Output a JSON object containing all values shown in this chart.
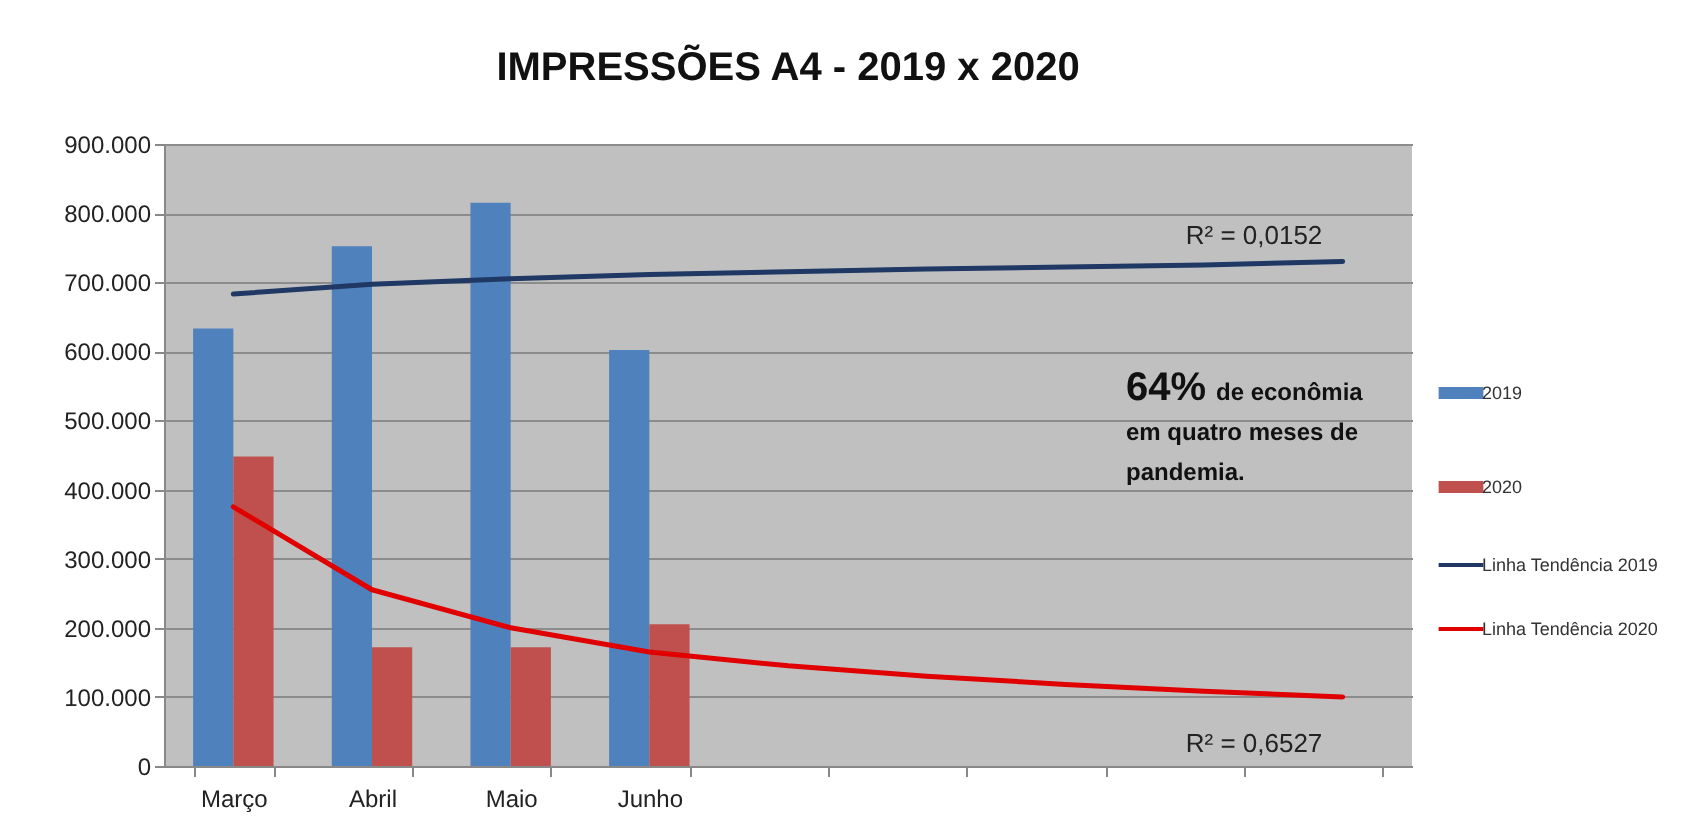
{
  "chart_data": {
    "type": "bar",
    "title": "IMPRESSÕES A4 - 2019 x 2020",
    "categories": [
      "Março",
      "Abril",
      "Maio",
      "Junho",
      null,
      null,
      null,
      null,
      null
    ],
    "series": [
      {
        "name": "2019",
        "color": "#4f81bd",
        "values": [
          633000,
          752000,
          815000,
          602000,
          null,
          null,
          null,
          null,
          null
        ]
      },
      {
        "name": "2020",
        "color": "#c0504d",
        "values": [
          448000,
          172000,
          172000,
          205000,
          null,
          null,
          null,
          null,
          null
        ]
      },
      {
        "name": "Linha Tendência 2019",
        "type": "line",
        "color": "#1f3864",
        "values": [
          683000,
          697000,
          705000,
          711000,
          715000,
          719000,
          722000,
          725000,
          730000
        ]
      },
      {
        "name": "Linha Tendência 2020",
        "type": "line",
        "color": "#e00000",
        "values": [
          375000,
          255000,
          200000,
          165000,
          145000,
          130000,
          118000,
          108000,
          100000
        ]
      }
    ],
    "ylim": [
      0,
      900000
    ],
    "yticks": [
      {
        "value": 0,
        "label": "0"
      },
      {
        "value": 100000,
        "label": "100.000"
      },
      {
        "value": 200000,
        "label": "200.000"
      },
      {
        "value": 300000,
        "label": "300.000"
      },
      {
        "value": 400000,
        "label": "400.000"
      },
      {
        "value": 500000,
        "label": "500.000"
      },
      {
        "value": 600000,
        "label": "600.000"
      },
      {
        "value": 700000,
        "label": "700.000"
      },
      {
        "value": 800000,
        "label": "800.000"
      },
      {
        "value": 900000,
        "label": "900.000"
      }
    ],
    "grid": "y",
    "legend": "right",
    "annotations": [
      "R² = 0,0152",
      "R² = 0,6527",
      "64% de econômia em quatro meses de pandemia."
    ]
  }
}
